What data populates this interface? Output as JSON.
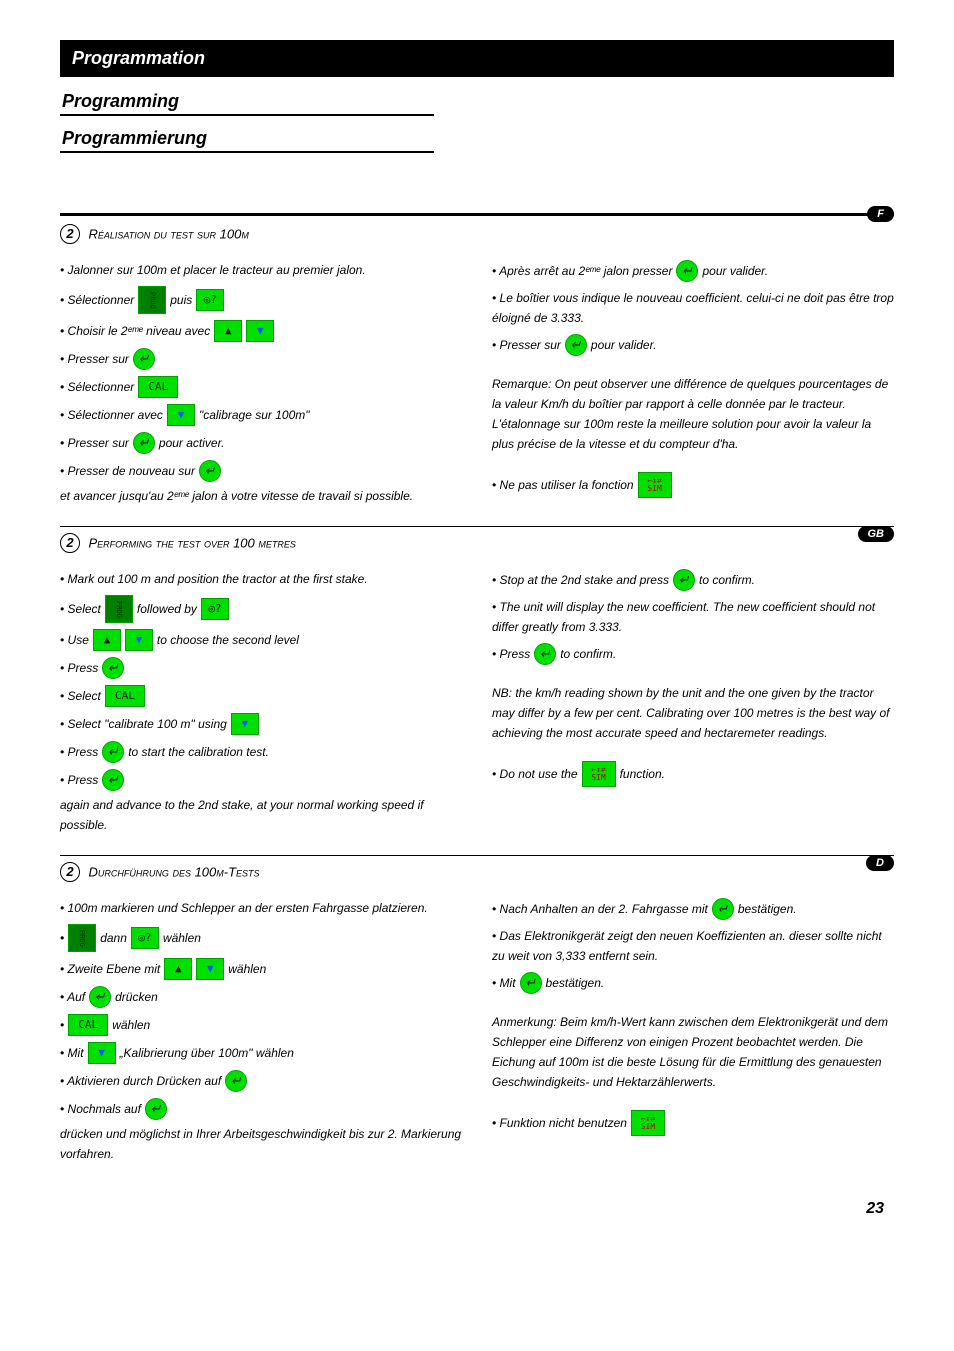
{
  "header": {
    "fr": "Programmation",
    "en": "Programming",
    "de": "Programmierung"
  },
  "lang_tabs": {
    "fr": "F",
    "en": "GB",
    "de": "D"
  },
  "icons": {
    "prog": "PROG",
    "help": "◎?",
    "up": "▲",
    "down": "▼",
    "enter": "↵",
    "cal": "CAL",
    "sim_top": "←↕⇄",
    "sim_bot": "SIM"
  },
  "page_number": "23",
  "fr": {
    "num": "2",
    "title": "Réalisation du test sur 100m",
    "left": [
      [
        "• Jalonner sur 100m et placer le tracteur au premier jalon."
      ],
      [
        "• Sélectionner",
        "{prog}",
        "puis",
        "{help}"
      ],
      [
        "• Choisir le 2ᵉᵐᵉ niveau avec",
        "{up}",
        "{down}"
      ],
      [
        "• Presser sur",
        "{enter}"
      ],
      [
        "• Sélectionner",
        "{cal}"
      ],
      [
        "• Sélectionner avec",
        "{down}",
        "\"calibrage sur 100m\""
      ],
      [
        "• Presser sur",
        "{enter}",
        "pour activer."
      ],
      [
        "• Presser de nouveau sur",
        "{enter}",
        "et avancer jusqu'au 2ᵉᵐᵉ jalon à votre vitesse de travail si possible."
      ]
    ],
    "right": [
      [
        "• Après arrêt au 2ᵉᵐᵉ jalon presser",
        "{enter}",
        "pour valider."
      ],
      [
        "• Le boîtier vous indique le nouveau coefficient.\n  celui-ci ne doit pas être trop éloigné de 3.333."
      ],
      [
        "• Presser sur",
        "{enter}",
        "pour valider."
      ]
    ],
    "note": "Remarque: On peut observer une différence de quelques pourcentages de la valeur Km/h du boîtier par rapport à celle donnée par le tracteur. L'étalonnage sur 100m reste la meilleure solution pour avoir la valeur la plus précise de la vitesse et du compteur d'ha.",
    "sim": [
      "• Ne pas utiliser la fonction",
      "{sim}"
    ]
  },
  "en": {
    "num": "2",
    "title": "Performing the test over 100 metres",
    "left": [
      [
        "• Mark out 100 m and position the tractor at the first stake."
      ],
      [
        "• Select",
        "{prog}",
        "followed by",
        "{help}"
      ],
      [
        "• Use",
        "{up}",
        "{down}",
        "to choose the second level"
      ],
      [
        "• Press",
        "{enter}"
      ],
      [
        "• Select",
        "{cal}"
      ],
      [
        "• Select \"calibrate 100 m\" using",
        "{down}"
      ],
      [
        "• Press",
        "{enter}",
        "to start the calibration test."
      ],
      [
        "• Press",
        "{enter}",
        "again and advance to the 2nd stake, at your normal working speed if possible."
      ]
    ],
    "right": [
      [
        "• Stop at the 2nd stake and press",
        "{enter}",
        "to confirm."
      ],
      [
        "• The unit will display the new coefficient.\n  The new coefficient should not differ greatly from 3.333."
      ],
      [
        "• Press",
        "{enter}",
        "to confirm."
      ]
    ],
    "note": "NB: the km/h reading shown by the unit and the one given by the tractor may differ by a few per cent. Calibrating over 100 metres is the best way of achieving the most accurate speed and hectaremeter readings.",
    "sim": [
      "• Do not use the",
      "{sim}",
      "function."
    ]
  },
  "de": {
    "num": "2",
    "title": "Durchführung des 100m-Tests",
    "left": [
      [
        "• 100m markieren und Schlepper an der ersten Fahrgasse platzieren."
      ],
      [
        "•",
        "{prog}",
        "dann",
        "{help}",
        "wählen"
      ],
      [
        "• Zweite Ebene mit",
        "{up}",
        "{down}",
        "wählen"
      ],
      [
        "• Auf",
        "{enter}",
        "drücken"
      ],
      [
        "•",
        "{cal}",
        "wählen"
      ],
      [
        "• Mit",
        "{down}",
        "„Kalibrierung über 100m\" wählen"
      ],
      [
        "• Aktivieren durch Drücken auf",
        "{enter}"
      ],
      [
        "• Nochmals auf",
        "{enter}",
        "drücken und möglichst in Ihrer Arbeitsgeschwindigkeit bis zur 2. Markierung vorfahren."
      ]
    ],
    "right": [
      [
        "• Nach Anhalten an der 2. Fahrgasse mit",
        "{enter}",
        "bestätigen."
      ],
      [
        "• Das Elektronikgerät zeigt den neuen Koeffizienten an.\n  dieser sollte nicht zu weit von 3,333 entfernt sein."
      ],
      [
        "• Mit",
        "{enter}",
        "bestätigen."
      ]
    ],
    "note": "Anmerkung: Beim km/h-Wert kann zwischen dem Elektronikgerät und dem Schlepper eine Differenz von einigen Prozent beobachtet werden. Die Eichung auf 100m ist die beste Lösung für die Ermittlung des genauesten Geschwindigkeits- und Hektarzählerwerts.",
    "sim": [
      "• Funktion nicht benutzen",
      "{sim}"
    ]
  }
}
